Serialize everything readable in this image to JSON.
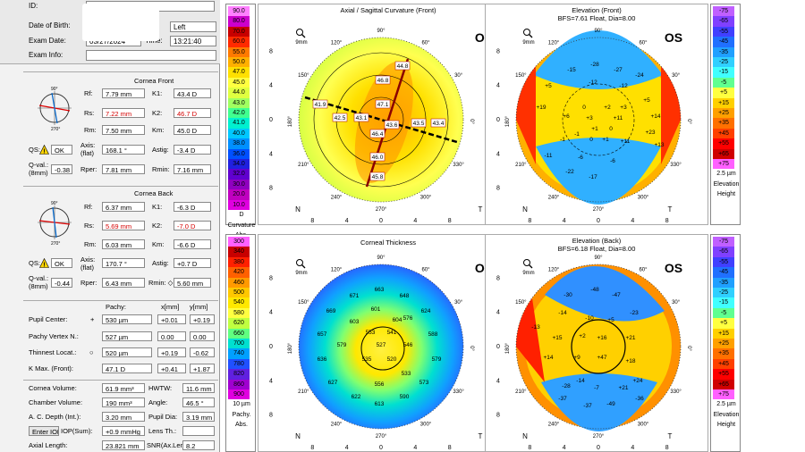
{
  "patient": {
    "id_label": "ID:",
    "dob_label": "Date of Birth:",
    "eye_value": "Left",
    "exam_date_label": "Exam Date:",
    "exam_date_value": "03/27/2024",
    "time_label": "Time:",
    "time_value": "13:21:40",
    "exam_info_label": "Exam Info:"
  },
  "cornea_front": {
    "title": "Cornea Front",
    "rf_label": "Rf:",
    "rf": "7.79 mm",
    "rs_label": "Rs:",
    "rs": "7.22 mm",
    "rm_label": "Rm:",
    "rm": "7.50 mm",
    "k1_label": "K1:",
    "k1": "43.4 D",
    "k2_label": "K2:",
    "k2": "46.7 D",
    "km_label": "Km:",
    "km": "45.0 D",
    "qs_label": "QS:",
    "qs": "OK",
    "axis_label": "Axis:",
    "axis_sub": "(flat)",
    "axis": "168.1 °",
    "astig_label": "Astig:",
    "astig": "-3.4 D",
    "qval_label": "Q-val.:",
    "qval_sub": "(8mm)",
    "qval": "-0.38",
    "rper_label": "Rper:",
    "rper": "7.81 mm",
    "rmin_label": "Rmin:",
    "rmin": "7.16 mm"
  },
  "cornea_back": {
    "title": "Cornea Back",
    "rf_label": "Rf:",
    "rf": "6.37 mm",
    "rs_label": "Rs:",
    "rs": "5.69 mm",
    "rm_label": "Rm:",
    "rm": "6.03 mm",
    "k1_label": "K1:",
    "k1": "-6.3 D",
    "k2_label": "K2:",
    "k2": "-7.0 D",
    "km_label": "Km:",
    "km": "-6.6 D",
    "qs_label": "QS:",
    "qs": "OK",
    "axis_label": "Axis:",
    "axis_sub": "(flat)",
    "axis": "170.7 °",
    "astig_label": "Astig:",
    "astig": "+0.7 D",
    "qval_label": "Q-val.:",
    "qval_sub": "(8mm)",
    "qval": "-0.44",
    "rper_label": "Rper:",
    "rper": "6.43 mm",
    "rmin_label": "Rmin: ◇",
    "rmin": "5.60 mm"
  },
  "pachy": {
    "h_pachy": "Pachy:",
    "h_x": "x[mm]",
    "h_y": "y[mm]",
    "rows": [
      {
        "label": "Pupil Center:",
        "sym": "+",
        "pachy": "530 µm",
        "x": "+0.01",
        "y": "+0.19"
      },
      {
        "label": "Pachy Vertex N.:",
        "sym": "",
        "pachy": "527 µm",
        "x": "0.00",
        "y": "0.00"
      },
      {
        "label": "Thinnest Locat.:",
        "sym": "○",
        "pachy": "520 µm",
        "x": "+0.19",
        "y": "-0.62"
      },
      {
        "label": "K Max. (Front):",
        "sym": "",
        "pachy": "47.1 D",
        "x": "+0.41",
        "y": "+1.87"
      }
    ]
  },
  "volumes": {
    "cornea_vol_label": "Cornea Volume:",
    "cornea_vol": "61.9 mm³",
    "hwtw_label": "HWTW:",
    "hwtw": "11.6 mm",
    "chamber_vol_label": "Chamber Volume:",
    "chamber_vol": "190 mm³",
    "angle_label": "Angle:",
    "angle": "46.5 °",
    "acd_label": "A. C. Depth (Int.):",
    "acd": "3.20 mm",
    "pupil_dia_label": "Pupil Dia:",
    "pupil_dia": "3.19 mm",
    "iop_btn": "Enter IOP",
    "iop_label": "IOP(Sum):",
    "iop": "+0.9 mmHg",
    "lens_label": "Lens Th.:",
    "lens": "",
    "axial_label": "Axial Length:",
    "axial": "23.821 mm",
    "snr_label": "SNR(Ax.Len.):",
    "snr": "8.2"
  },
  "common": {
    "os": "OS",
    "mm9": "9mm",
    "nasal": "N",
    "temporal": "T",
    "x_ticks": [
      "8",
      "4",
      "0",
      "4",
      "8"
    ],
    "y_ticks": [
      "8",
      "4",
      "0",
      "4",
      "8"
    ],
    "deg": [
      "90°",
      "120°",
      "60°",
      "150°",
      "30°",
      "180°",
      "0°",
      "210°",
      "330°",
      "240°",
      "300°",
      "270°"
    ],
    "mag_icon": "magnifier-icon"
  },
  "curv_scale": {
    "values": [
      "90.0",
      "80.0",
      "70.0",
      "60.0",
      "55.0",
      "50.0",
      "47.0",
      "45.0",
      "44.0",
      "43.0",
      "42.0",
      "41.0",
      "40.0",
      "38.0",
      "36.0",
      "34.0",
      "32.0",
      "30.0",
      "20.0",
      "10.0"
    ],
    "colors": [
      "#ff80ff",
      "#cc00cc",
      "#c80000",
      "#ff2a00",
      "#ff7a00",
      "#ffb000",
      "#ffe000",
      "#ffff40",
      "#e0ff40",
      "#a0ff60",
      "#40ff90",
      "#00f0d0",
      "#00c8ff",
      "#0090ff",
      "#0050ff",
      "#2020e0",
      "#6000d0",
      "#9000c0",
      "#c000c0",
      "#e000e0"
    ],
    "unit": "D",
    "foot1": "Curvature",
    "foot2": "Abs."
  },
  "pachy_scale": {
    "values": [
      "300",
      "340",
      "380",
      "420",
      "460",
      "500",
      "540",
      "580",
      "620",
      "660",
      "700",
      "740",
      "780",
      "820",
      "860",
      "900"
    ],
    "colors": [
      "#ff60ff",
      "#c80000",
      "#ff2000",
      "#ff6000",
      "#ff9a00",
      "#ffc800",
      "#ffe800",
      "#ffff40",
      "#c0ff40",
      "#60ff80",
      "#00e0d0",
      "#00a0ff",
      "#2050ff",
      "#6020e0",
      "#a000d0",
      "#e000e0"
    ],
    "unit": "10 µm",
    "foot1": "Pachy.",
    "foot2": "Abs."
  },
  "elev_scale": {
    "values": [
      "-75",
      "-65",
      "-55",
      "-45",
      "-35",
      "-25",
      "-15",
      "-5",
      "+5",
      "+15",
      "+25",
      "+35",
      "+45",
      "+55",
      "+65",
      "+75"
    ],
    "colors": [
      "#c060ff",
      "#8040ff",
      "#4040ff",
      "#2070ff",
      "#20a0ff",
      "#30d0ff",
      "#40ffff",
      "#60ff90",
      "#ffff40",
      "#ffd000",
      "#ffa000",
      "#ff7000",
      "#ff4000",
      "#ff0000",
      "#d00000",
      "#ff60ff"
    ],
    "unit": "2.5 µm",
    "foot1": "Elevation",
    "foot2": "Height"
  },
  "axial_map": {
    "title": "Axial / Sagittal Curvature (Front)",
    "labels": [
      "44.8",
      "46.8",
      "41.9",
      "42.5",
      "43.1",
      "47.1",
      "43.5",
      "43.4",
      "43.6",
      "46.4",
      "46.0",
      "45.8"
    ]
  },
  "elev_front": {
    "title": "Elevation (Front)",
    "sub": "BFS=7.61 Float, Dia=8.00",
    "labels": [
      "-28",
      "-15",
      "-27",
      "-12",
      "-12",
      "-24",
      "+5",
      "0",
      "+2",
      "+3",
      "+5",
      "+19",
      "+6",
      "+3",
      "+11",
      "+14",
      "+1",
      "0",
      "+23",
      "+13",
      "-1",
      "0",
      "+1",
      "+11",
      "-1",
      "-6",
      "-11",
      "-22",
      "-17",
      "-6"
    ]
  },
  "thickness_map": {
    "title": "Corneal Thickness",
    "labels": [
      "663",
      "671",
      "648",
      "669",
      "601",
      "624",
      "576",
      "603",
      "657",
      "553",
      "541",
      "588",
      "579",
      "527",
      "546",
      "636",
      "535",
      "520",
      "579",
      "556",
      "533",
      "627",
      "573",
      "622",
      "590",
      "613",
      "604"
    ]
  },
  "elev_back": {
    "title": "Elevation (Back)",
    "sub": "BFS=6.18 Float, Dia=8.00",
    "labels": [
      "-48",
      "-30",
      "-47",
      "-14",
      "-10",
      "-23",
      "+5",
      "-13",
      "+15",
      "+2",
      "+16",
      "+21",
      "+14",
      "+9",
      "+47",
      "+18",
      "-14",
      "+24",
      "-28",
      "-7",
      "+21",
      "-37",
      "-36",
      "-37",
      "-49"
    ]
  }
}
